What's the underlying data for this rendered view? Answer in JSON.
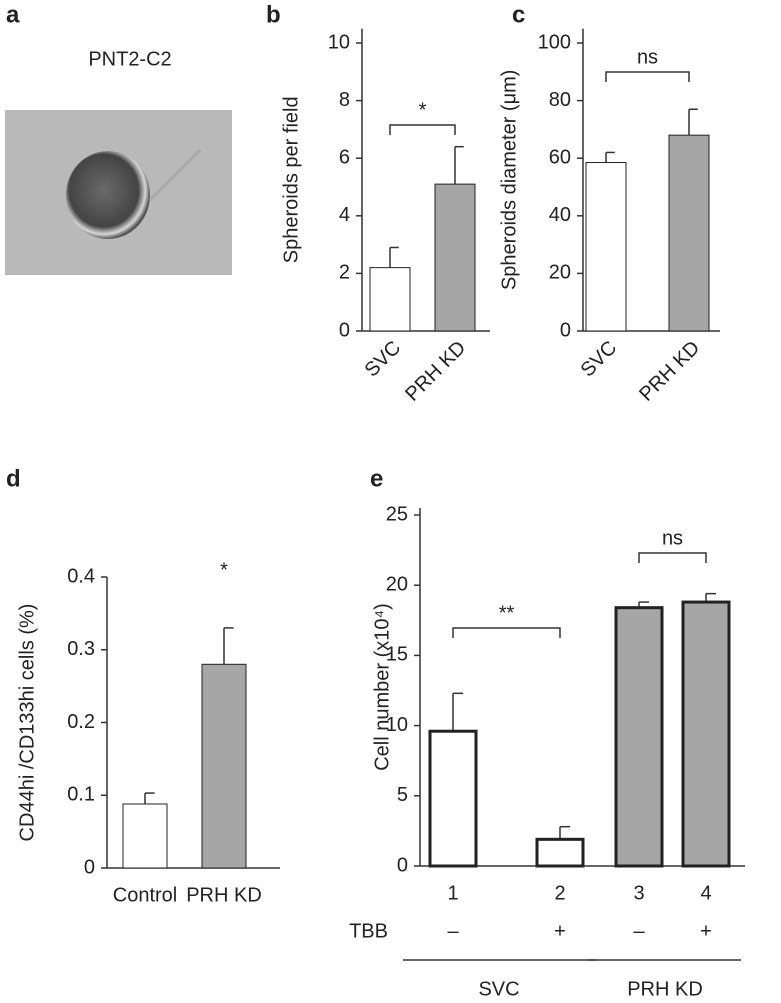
{
  "figure": {
    "panel_labels": [
      "a",
      "b",
      "c",
      "d",
      "e"
    ],
    "image_caption": "PNT2-C2"
  },
  "chart_data": [
    {
      "type": "bar",
      "ylabel": "Spheroids per field",
      "categories": [
        "SVC",
        "PRH KD"
      ],
      "values": [
        2.2,
        5.1
      ],
      "errors": [
        0.7,
        1.3
      ],
      "colors": [
        "#ffffff",
        "#a6a6a6"
      ],
      "ylim": [
        0,
        10.5
      ],
      "yticks": [
        0,
        2,
        4,
        6,
        8,
        10
      ],
      "annotations": [
        {
          "text": "*",
          "span": [
            "SVC",
            "PRH KD"
          ]
        }
      ]
    },
    {
      "type": "bar",
      "ylabel": "Spheroids diameter (μm)",
      "categories": [
        "SVC",
        "PRH KD"
      ],
      "values": [
        58.5,
        68
      ],
      "errors": [
        3.5,
        9
      ],
      "colors": [
        "#ffffff",
        "#a6a6a6"
      ],
      "ylim": [
        0,
        105
      ],
      "yticks": [
        0,
        20,
        40,
        60,
        80,
        100
      ],
      "annotations": [
        {
          "text": "ns",
          "span": [
            "SVC",
            "PRH KD"
          ]
        }
      ]
    },
    {
      "type": "bar",
      "ylabel": "CD44hi /CD133hi cells (%)",
      "categories": [
        "Control",
        "PRH KD"
      ],
      "values": [
        0.088,
        0.28
      ],
      "errors": [
        0.015,
        0.05
      ],
      "colors": [
        "#ffffff",
        "#a6a6a6"
      ],
      "ylim": [
        0,
        0.4
      ],
      "yticks": [
        0,
        0.1,
        0.2,
        0.3,
        0.4
      ],
      "annotations": [
        {
          "text": "*",
          "span": [
            "PRH KD"
          ]
        }
      ]
    },
    {
      "type": "bar",
      "ylabel": "Cell number (x10⁴)",
      "categories": [
        "1",
        "2",
        "3",
        "4"
      ],
      "values": [
        9.6,
        1.9,
        18.4,
        18.8
      ],
      "errors": [
        2.7,
        0.9,
        0.4,
        0.6
      ],
      "colors": [
        "#ffffff",
        "#ffffff",
        "#a6a6a6",
        "#a6a6a6"
      ],
      "ylim": [
        0,
        25.5
      ],
      "yticks": [
        0,
        5,
        10,
        15,
        20,
        25
      ],
      "annotations": [
        {
          "text": "**",
          "span": [
            "1",
            "2"
          ]
        },
        {
          "text": "ns",
          "span": [
            "3",
            "4"
          ]
        }
      ],
      "rows": [
        {
          "label": "TBB",
          "values": [
            "–",
            "+",
            "–",
            "+"
          ]
        }
      ],
      "groups": [
        {
          "label": "SVC",
          "span": [
            "1",
            "2"
          ]
        },
        {
          "label": "PRH KD",
          "span": [
            "3",
            "4"
          ]
        }
      ]
    }
  ]
}
